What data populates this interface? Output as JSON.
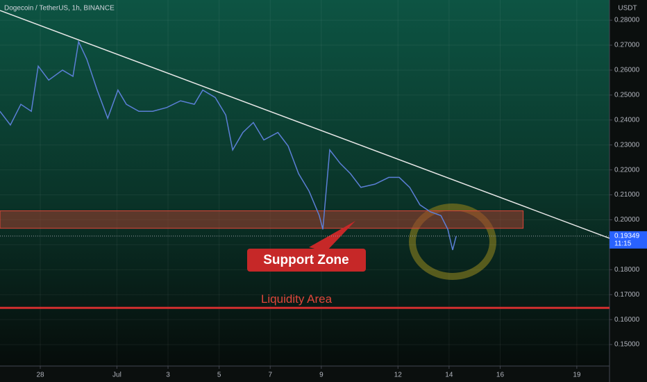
{
  "chart_data": {
    "type": "line",
    "title": "Dogecoin / TetherUS, 1h, BINANCE",
    "y_unit": "USDT",
    "x": [
      -1.58,
      -1.17,
      -0.76,
      -0.35,
      -0.08,
      0.33,
      0.87,
      1.28,
      1.5,
      1.82,
      2.23,
      2.64,
      3.04,
      3.37,
      3.86,
      4.4,
      4.95,
      5.49,
      6.03,
      6.36,
      6.85,
      7.26,
      7.53,
      7.93,
      8.34,
      8.75,
      9.3,
      9.7,
      10.11,
      10.52,
      10.92,
      11.06,
      11.33,
      11.74,
      12.14,
      12.55,
      13.1,
      13.64,
      14.05,
      14.46,
      14.86,
      15.27,
      15.68,
      15.95,
      16.14,
      16.28
    ],
    "series": [
      {
        "name": "DOGEUSDT",
        "color": "#5b7fd6",
        "values": [
          0.2435,
          0.238,
          0.2463,
          0.2435,
          0.2616,
          0.256,
          0.26,
          0.2575,
          0.2714,
          0.2644,
          0.2519,
          0.2407,
          0.252,
          0.2463,
          0.2435,
          0.2435,
          0.245,
          0.2477,
          0.2463,
          0.252,
          0.249,
          0.242,
          0.228,
          0.235,
          0.239,
          0.232,
          0.235,
          0.2296,
          0.2185,
          0.2115,
          0.2017,
          0.1962,
          0.228,
          0.2226,
          0.2185,
          0.213,
          0.2143,
          0.217,
          0.217,
          0.213,
          0.206,
          0.2032,
          0.2017,
          0.1962,
          0.1879,
          0.1935
        ]
      }
    ],
    "xlim": [
      -1.576,
      22.28
    ],
    "ylim": [
      0.1414,
      0.2881
    ],
    "xticks": [
      {
        "value": 0,
        "label": "28"
      },
      {
        "value": 3,
        "label": "Jul"
      },
      {
        "value": 5,
        "label": "3"
      },
      {
        "value": 7,
        "label": "5"
      },
      {
        "value": 9,
        "label": "7"
      },
      {
        "value": 11,
        "label": "9"
      },
      {
        "value": 14,
        "label": "12"
      },
      {
        "value": 16,
        "label": "14"
      },
      {
        "value": 18,
        "label": "16"
      },
      {
        "value": 21,
        "label": "19"
      }
    ],
    "yticks": [
      {
        "value": 0.15,
        "label": "0.15000"
      },
      {
        "value": 0.16,
        "label": "0.16000"
      },
      {
        "value": 0.17,
        "label": "0.17000"
      },
      {
        "value": 0.18,
        "label": "0.18000"
      },
      {
        "value": 0.19,
        "label": "0.19000"
      },
      {
        "value": 0.2,
        "label": "0.20000"
      },
      {
        "value": 0.21,
        "label": "0.21000"
      },
      {
        "value": 0.22,
        "label": "0.22000"
      },
      {
        "value": 0.23,
        "label": "0.23000"
      },
      {
        "value": 0.24,
        "label": "0.24000"
      },
      {
        "value": 0.25,
        "label": "0.25000"
      },
      {
        "value": 0.26,
        "label": "0.26000"
      },
      {
        "value": 0.27,
        "label": "0.27000"
      },
      {
        "value": 0.28,
        "label": "0.28000"
      }
    ],
    "grid": true,
    "last_price": 0.19349,
    "countdown": "11:15",
    "trendline": {
      "x": [
        -1.576,
        22.28
      ],
      "y": [
        0.2839,
        0.1926
      ]
    },
    "support_zone": {
      "label": "Support Zone",
      "range": [
        0.1966,
        0.2036
      ],
      "x": [
        -1.576,
        18.9
      ]
    },
    "liquidity": {
      "label": "Liquidity Area",
      "level": 0.1647
    }
  }
}
